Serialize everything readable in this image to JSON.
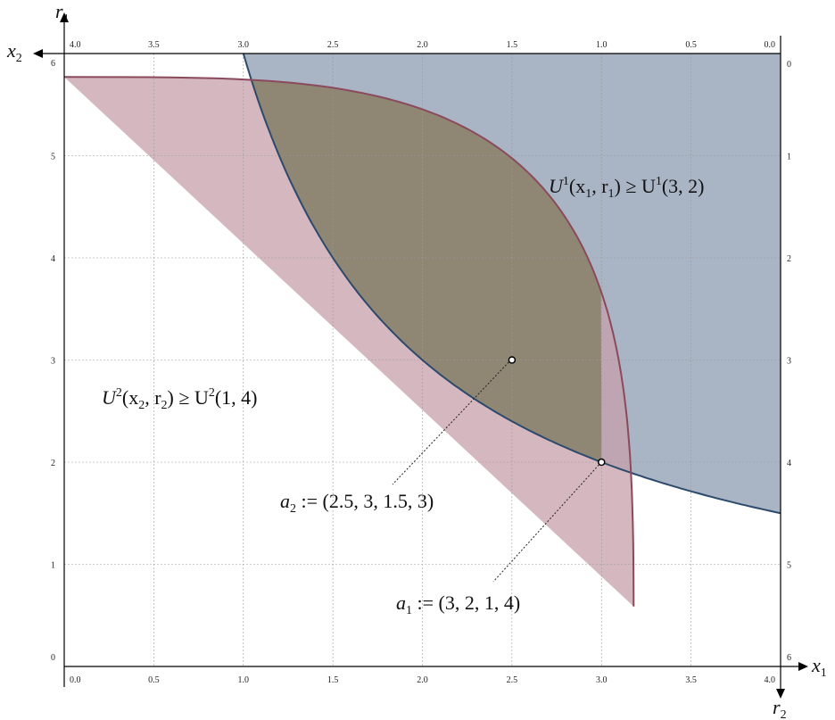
{
  "axes": {
    "x1": {
      "label": "x",
      "sub": "1",
      "ticks": [
        "0.0",
        "0.5",
        "1.0",
        "1.5",
        "2.0",
        "2.5",
        "3.0",
        "3.5",
        "4.0"
      ],
      "range": [
        0,
        4
      ]
    },
    "x2": {
      "label": "x",
      "sub": "2",
      "ticks": [
        "4.0",
        "3.5",
        "3.0",
        "2.5",
        "2.0",
        "1.5",
        "1.0",
        "0.5",
        "0.0"
      ],
      "range": [
        4,
        0
      ]
    },
    "r1": {
      "label": "r",
      "sub": "1",
      "ticks": [
        "0",
        "1",
        "2",
        "3",
        "4",
        "5",
        "6"
      ],
      "range": [
        0,
        6
      ]
    },
    "r2": {
      "label": "r",
      "sub": "2",
      "ticks": [
        "0",
        "1",
        "2",
        "3",
        "4",
        "5",
        "6"
      ],
      "range": [
        0,
        6
      ]
    }
  },
  "regions": [
    {
      "name": "U1",
      "text_pre": "U",
      "sup1": "1",
      "args1": "(x",
      "sub1": "1",
      "args1b": ", r",
      "sub2": "1",
      "args1c": ") ≥ U",
      "sup2": "1",
      "args2": "(3, 2)",
      "color": "#8c9bb0"
    },
    {
      "name": "U2",
      "text_pre": "U",
      "sup1": "2",
      "args1": "(x",
      "sub1": "2",
      "args1b": ", r",
      "sub2": "2",
      "args1c": ") ≥ U",
      "sup2": "2",
      "args2": "(1, 4)",
      "color": "#c79fab"
    }
  ],
  "points": [
    {
      "name": "a1",
      "letter": "a",
      "sub": "1",
      "text": " := (3, 2, 1, 4)",
      "x1": 3,
      "r1": 2
    },
    {
      "name": "a2",
      "letter": "a",
      "sub": "2",
      "text": " := (2.5, 3, 1.5, 3)",
      "x1": 2.5,
      "r1": 3
    }
  ],
  "colors": {
    "overlap": "#8f8774",
    "curve1": "#2c4a6b",
    "curve2": "#8b4a5c",
    "grid": "#bdbdbd"
  }
}
